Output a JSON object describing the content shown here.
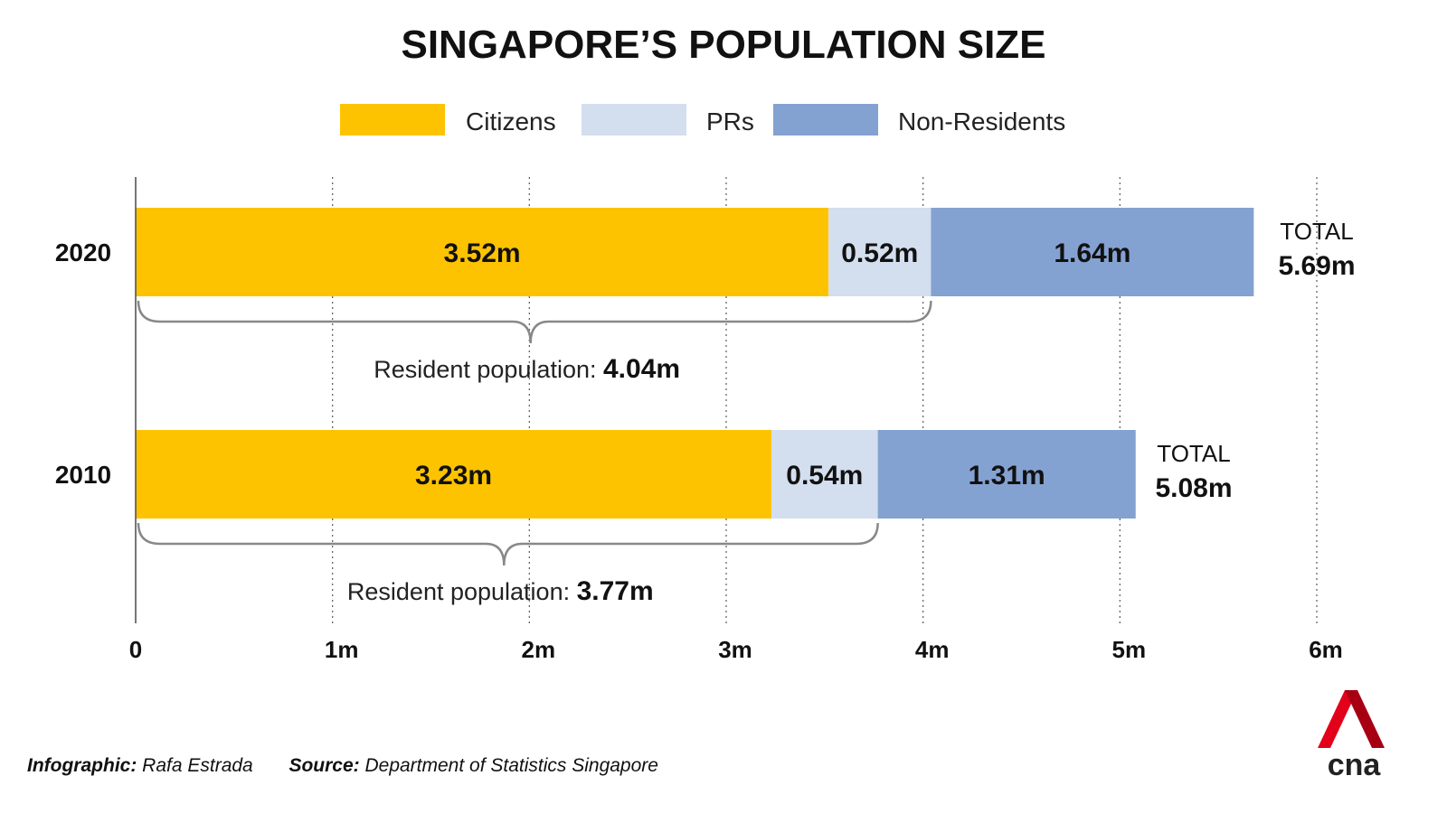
{
  "chart_data": {
    "type": "bar",
    "orientation": "horizontal",
    "stacked": true,
    "title": "SINGAPORE’S POPULATION SIZE",
    "categories": [
      "2020",
      "2010"
    ],
    "series": [
      {
        "name": "Citizens",
        "values": [
          3.52,
          3.23
        ],
        "labels": [
          "3.52m",
          "3.23m"
        ],
        "color": "#FDC300"
      },
      {
        "name": "PRs",
        "values": [
          0.52,
          0.54
        ],
        "labels": [
          "0.52m",
          "0.54m"
        ],
        "color": "#D3DEEE"
      },
      {
        "name": "Non-Residents",
        "values": [
          1.64,
          1.31
        ],
        "labels": [
          "1.64m",
          "1.31m"
        ],
        "color": "#84A2D1"
      }
    ],
    "totals": [
      {
        "caption": "TOTAL",
        "value": 5.69,
        "label": "5.69m"
      },
      {
        "caption": "TOTAL",
        "value": 5.08,
        "label": "5.08m"
      }
    ],
    "resident_population": [
      {
        "text": "Resident population: ",
        "value": 4.04,
        "label": "4.04m"
      },
      {
        "text": "Resident population: ",
        "value": 3.77,
        "label": "3.77m"
      }
    ],
    "x_ticks": [
      {
        "value": 0,
        "label": "0"
      },
      {
        "value": 1,
        "label": "1m"
      },
      {
        "value": 2,
        "label": "2m"
      },
      {
        "value": 3,
        "label": "3m"
      },
      {
        "value": 4,
        "label": "4m"
      },
      {
        "value": 5,
        "label": "5m"
      },
      {
        "value": 6,
        "label": "6m"
      }
    ],
    "xlim": [
      0,
      6
    ],
    "grid": "vertical dotted",
    "legend": "top-center"
  },
  "footer": {
    "infographic_label": "Infographic:",
    "infographic_value": "Rafa Estrada",
    "source_label": "Source:",
    "source_value": "Department of Statistics Singapore"
  },
  "logo": {
    "text": "cna",
    "colors": {
      "red": "#E2001A",
      "dark_red": "#A80013",
      "text": "#222222"
    }
  }
}
